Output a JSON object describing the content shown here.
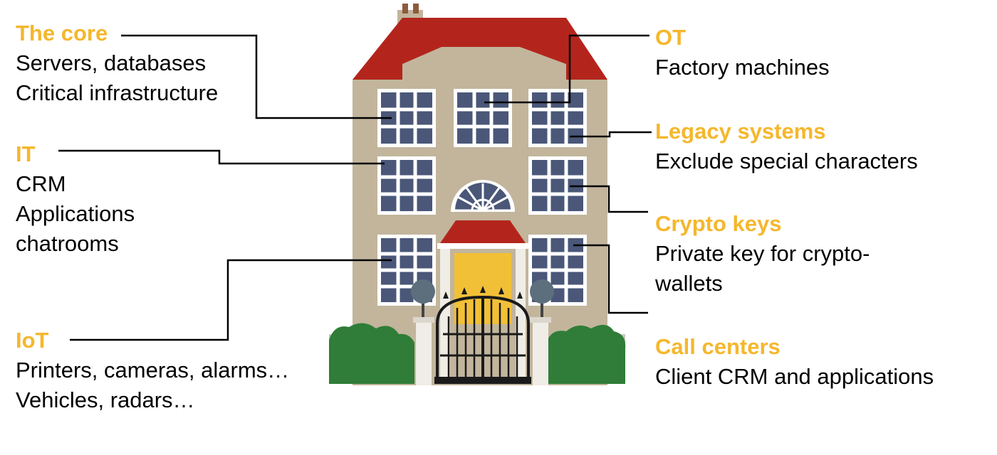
{
  "colors": {
    "accent": "#f5b72d",
    "roof": "#b3251c",
    "wall": "#c2b59c",
    "window": "#4a5778",
    "door": "#f2c037",
    "hedge": "#2f7d38",
    "gate": "#1a1a1a"
  },
  "callouts": {
    "core": {
      "title": "The core",
      "lines": [
        "Servers, databases",
        "Critical infrastructure"
      ]
    },
    "it": {
      "title": "IT",
      "lines": [
        "CRM",
        "Applications",
        "chatrooms"
      ]
    },
    "iot": {
      "title": "IoT",
      "lines": [
        "Printers, cameras, alarms…",
        "Vehicles, radars…"
      ]
    },
    "ot": {
      "title": "OT",
      "lines": [
        "Factory machines"
      ]
    },
    "legacy": {
      "title": "Legacy systems",
      "lines": [
        "Exclude special characters"
      ]
    },
    "crypto": {
      "title": "Crypto keys",
      "lines": [
        "Private key for crypto-",
        "wallets"
      ]
    },
    "callcenters": {
      "title": "Call centers",
      "lines": [
        "Client CRM and applications"
      ]
    }
  }
}
